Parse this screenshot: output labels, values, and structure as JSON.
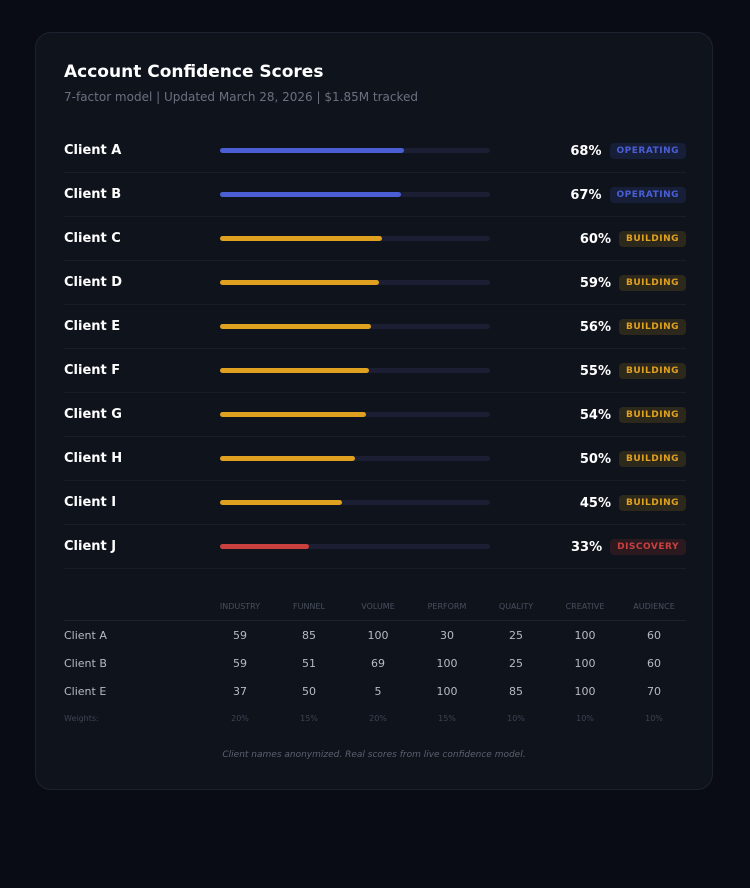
{
  "header": {
    "title": "Account Confidence Scores",
    "subtitle": "7-factor model | Updated March 28, 2026 | $1.85M tracked"
  },
  "chart_data": {
    "type": "bar",
    "orientation": "horizontal",
    "categories": [
      "Client A",
      "Client B",
      "Client C",
      "Client D",
      "Client E",
      "Client F",
      "Client G",
      "Client H",
      "Client I",
      "Client J"
    ],
    "values": [
      68,
      67,
      60,
      59,
      56,
      55,
      54,
      50,
      45,
      33
    ],
    "value_labels": [
      "68%",
      "67%",
      "60%",
      "59%",
      "56%",
      "55%",
      "54%",
      "50%",
      "45%",
      "33%"
    ],
    "statuses": [
      "OPERATING",
      "OPERATING",
      "BUILDING",
      "BUILDING",
      "BUILDING",
      "BUILDING",
      "BUILDING",
      "BUILDING",
      "BUILDING",
      "DISCOVERY"
    ],
    "colors": [
      "#4a5fd6",
      "#4a5fd6",
      "#e0a020",
      "#e0a020",
      "#e0a020",
      "#e0a020",
      "#e0a020",
      "#e0a020",
      "#e0a020",
      "#c9403f"
    ],
    "xlim": [
      0,
      100
    ]
  },
  "table": {
    "columns": [
      "INDUSTRY",
      "FUNNEL",
      "VOLUME",
      "PERFORM",
      "QUALITY",
      "CREATIVE",
      "AUDIENCE"
    ],
    "rows": [
      [
        "Client A",
        "59",
        "85",
        "100",
        "30",
        "25",
        "100",
        "60"
      ],
      [
        "Client B",
        "59",
        "51",
        "69",
        "100",
        "25",
        "100",
        "60"
      ],
      [
        "Client E",
        "37",
        "50",
        "5",
        "100",
        "85",
        "100",
        "70"
      ]
    ],
    "weights": [
      "Weights:",
      "20%",
      "15%",
      "20%",
      "15%",
      "10%",
      "10%",
      "10%"
    ]
  },
  "footnote": "Client names anonymized. Real scores from live confidence model."
}
